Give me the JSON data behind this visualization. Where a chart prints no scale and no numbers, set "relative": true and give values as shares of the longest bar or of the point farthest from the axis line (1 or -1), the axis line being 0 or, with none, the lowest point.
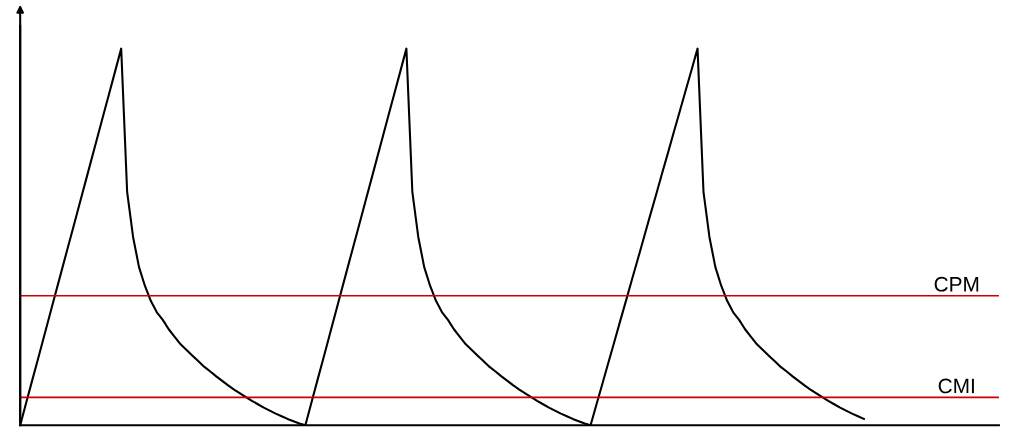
{
  "chart_data": {
    "type": "line",
    "relative": true,
    "marker": "none",
    "line_style": "solid",
    "categories": [
      null,
      null,
      null,
      null,
      null,
      null,
      null,
      null,
      null,
      null,
      null,
      null,
      null,
      null,
      null,
      null,
      null,
      null,
      null,
      null,
      null,
      null,
      null,
      null,
      null,
      null,
      null,
      null,
      null,
      null,
      null,
      null,
      null,
      null,
      null,
      null,
      null,
      null,
      null,
      null,
      null,
      null,
      null,
      null,
      null,
      null,
      null,
      null,
      null,
      null,
      null,
      null,
      null,
      null,
      null,
      null,
      null,
      null,
      null,
      null,
      null,
      null,
      null,
      null,
      null,
      null,
      null,
      null,
      null,
      null,
      null,
      null,
      null,
      null,
      null,
      null,
      null,
      null,
      null,
      null,
      null,
      null,
      null,
      null,
      null,
      null,
      null,
      null,
      null,
      null,
      null,
      null,
      null,
      null,
      null,
      null,
      null,
      null,
      null,
      null,
      null,
      null,
      null,
      null,
      null,
      null,
      null,
      null,
      null,
      null,
      null,
      null,
      null,
      null,
      null,
      null,
      null,
      null,
      null,
      null,
      null,
      null,
      null,
      null,
      null,
      null,
      null,
      null,
      null,
      null,
      null,
      null,
      null,
      null,
      null,
      null,
      null,
      null,
      null,
      null,
      null,
      null,
      null
    ],
    "series": [
      {
        "color": "#000000",
        "values": [
          0,
          0.059,
          0.118,
          0.176,
          0.235,
          0.294,
          0.353,
          0.412,
          0.471,
          0.529,
          0.588,
          0.647,
          0.706,
          0.765,
          0.824,
          0.882,
          0.941,
          1.0,
          0.62,
          0.5,
          0.42,
          0.37,
          0.33,
          0.3,
          0.28,
          0.255,
          0.235,
          0.215,
          0.2,
          0.185,
          0.17,
          0.155,
          0.143,
          0.13,
          0.118,
          0.106,
          0.095,
          0.085,
          0.075,
          0.065,
          0.056,
          0.047,
          0.039,
          0.031,
          0.024,
          0.017,
          0.011,
          0.005,
          0,
          0.059,
          0.118,
          0.176,
          0.235,
          0.294,
          0.353,
          0.412,
          0.471,
          0.529,
          0.588,
          0.647,
          0.706,
          0.765,
          0.824,
          0.882,
          0.941,
          1.0,
          0.62,
          0.5,
          0.42,
          0.37,
          0.33,
          0.3,
          0.28,
          0.255,
          0.235,
          0.215,
          0.2,
          0.185,
          0.17,
          0.155,
          0.143,
          0.13,
          0.118,
          0.106,
          0.095,
          0.085,
          0.075,
          0.065,
          0.056,
          0.047,
          0.039,
          0.031,
          0.024,
          0.017,
          0.011,
          0.005,
          0,
          0.056,
          0.111,
          0.167,
          0.222,
          0.278,
          0.333,
          0.389,
          0.444,
          0.5,
          0.556,
          0.611,
          0.667,
          0.722,
          0.778,
          0.833,
          0.889,
          0.944,
          1.0,
          0.62,
          0.5,
          0.42,
          0.37,
          0.33,
          0.3,
          0.28,
          0.255,
          0.235,
          0.215,
          0.2,
          0.185,
          0.17,
          0.155,
          0.143,
          0.13,
          0.118,
          0.106,
          0.095,
          0.085,
          0.075,
          0.065,
          0.056,
          0.047,
          0.039,
          0.031,
          0.024,
          0.017
        ]
      }
    ],
    "ref_lines": [
      {
        "axis": "y",
        "value": 0.344,
        "label": "CPM",
        "color": "#cc0000"
      },
      {
        "axis": "y",
        "value": 0.074,
        "label": "CMI",
        "color": "#cc0000"
      }
    ]
  }
}
